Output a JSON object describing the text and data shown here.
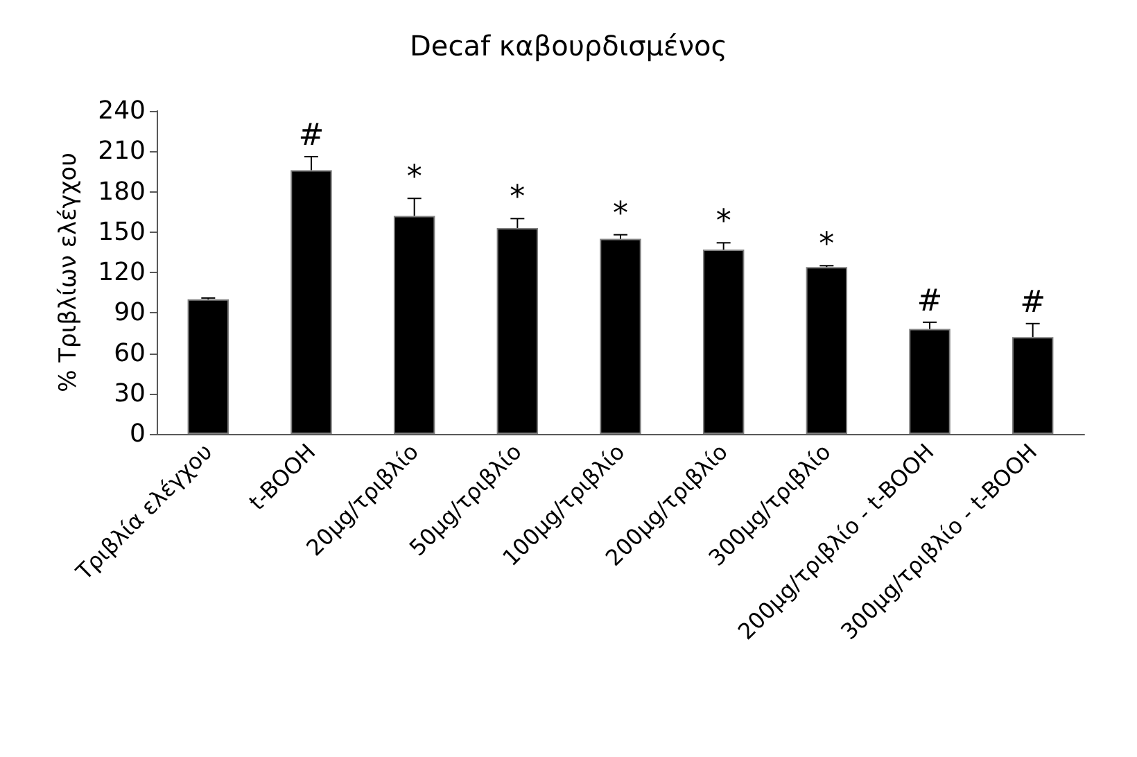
{
  "chart_data": {
    "type": "bar",
    "title": "Decaf καβουρδισμένος",
    "ylabel": "% Τριβλίων ελέγχου",
    "categories": [
      "Τριβλία ελέγχου",
      "t-BOOH",
      "20μg/τριβλίο",
      "50μg/τριβλίο",
      "100μg/τριβλίο",
      "200μg/τριβλίο",
      "300μg/τριβλίο",
      "200μg/τριβλίο - t-BOOH",
      "300μg/τριβλίο - t-BOOH"
    ],
    "values": [
      100,
      196,
      162,
      153,
      145,
      137,
      124,
      78,
      72
    ],
    "errors": [
      1,
      10,
      13,
      7,
      3,
      5,
      1,
      5,
      10
    ],
    "color": "#000000",
    "ylim": [
      0,
      240
    ],
    "yticks": [
      0,
      30,
      60,
      90,
      120,
      150,
      180,
      210,
      240
    ],
    "grid": false,
    "annotations": [
      {
        "text": "#",
        "x": "t-BOOH",
        "y": 206
      },
      {
        "text": "*",
        "x": "20μg/τριβλίο",
        "y": 175
      },
      {
        "text": "*",
        "x": "50μg/τριβλίο",
        "y": 160
      },
      {
        "text": "*",
        "x": "100μg/τριβλίο",
        "y": 148
      },
      {
        "text": "*",
        "x": "200μg/τριβλίο",
        "y": 142
      },
      {
        "text": "*",
        "x": "300μg/τριβλίο",
        "y": 125
      },
      {
        "text": "#",
        "x": "200μg/τριβλίο - t-BOOH",
        "y": 83
      },
      {
        "text": "#",
        "x": "300μg/τριβλίο - t-BOOH",
        "y": 82
      }
    ]
  }
}
